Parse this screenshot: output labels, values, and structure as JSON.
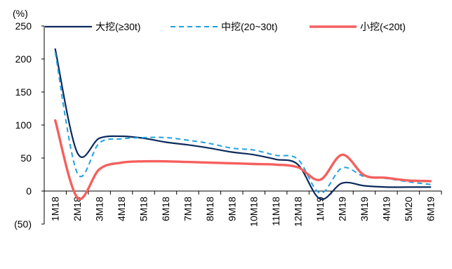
{
  "chart_data": {
    "type": "line",
    "title": "",
    "ylabel": "(%)",
    "xlabel": "",
    "ylim": [
      -50,
      250
    ],
    "yticks": [
      {
        "value": 250,
        "label": "250"
      },
      {
        "value": 200,
        "label": "200"
      },
      {
        "value": 150,
        "label": "150"
      },
      {
        "value": 100,
        "label": "100"
      },
      {
        "value": 50,
        "label": "50"
      },
      {
        "value": 0,
        "label": "0"
      },
      {
        "value": -50,
        "label": "(50)"
      }
    ],
    "categories": [
      "1M18",
      "2M18",
      "3M18",
      "4M18",
      "5M18",
      "6M18",
      "7M18",
      "8M18",
      "9M18",
      "10M18",
      "11M18",
      "12M18",
      "1M19",
      "2M19",
      "3M19",
      "4M19",
      "5M20",
      "6M19"
    ],
    "legend_position": "top",
    "grid": false,
    "series": [
      {
        "name": "大挖(≥30t)",
        "color": "#0b2a5c",
        "style": "solid",
        "values": [
          215,
          58,
          80,
          83,
          80,
          74,
          70,
          65,
          59,
          55,
          48,
          40,
          -12,
          12,
          8,
          6,
          6,
          6
        ]
      },
      {
        "name": "中挖(20~30t)",
        "color": "#1fa2e0",
        "style": "dashed",
        "values": [
          210,
          27,
          73,
          79,
          81,
          81,
          77,
          72,
          65,
          62,
          54,
          48,
          -3,
          35,
          22,
          19,
          14,
          10
        ]
      },
      {
        "name": "小挖(<20t)",
        "color": "#f4605e",
        "style": "solid",
        "values": [
          107,
          -10,
          33,
          43,
          45,
          45,
          44,
          43,
          42,
          41,
          40,
          36,
          17,
          55,
          24,
          20,
          16,
          15
        ]
      }
    ]
  }
}
